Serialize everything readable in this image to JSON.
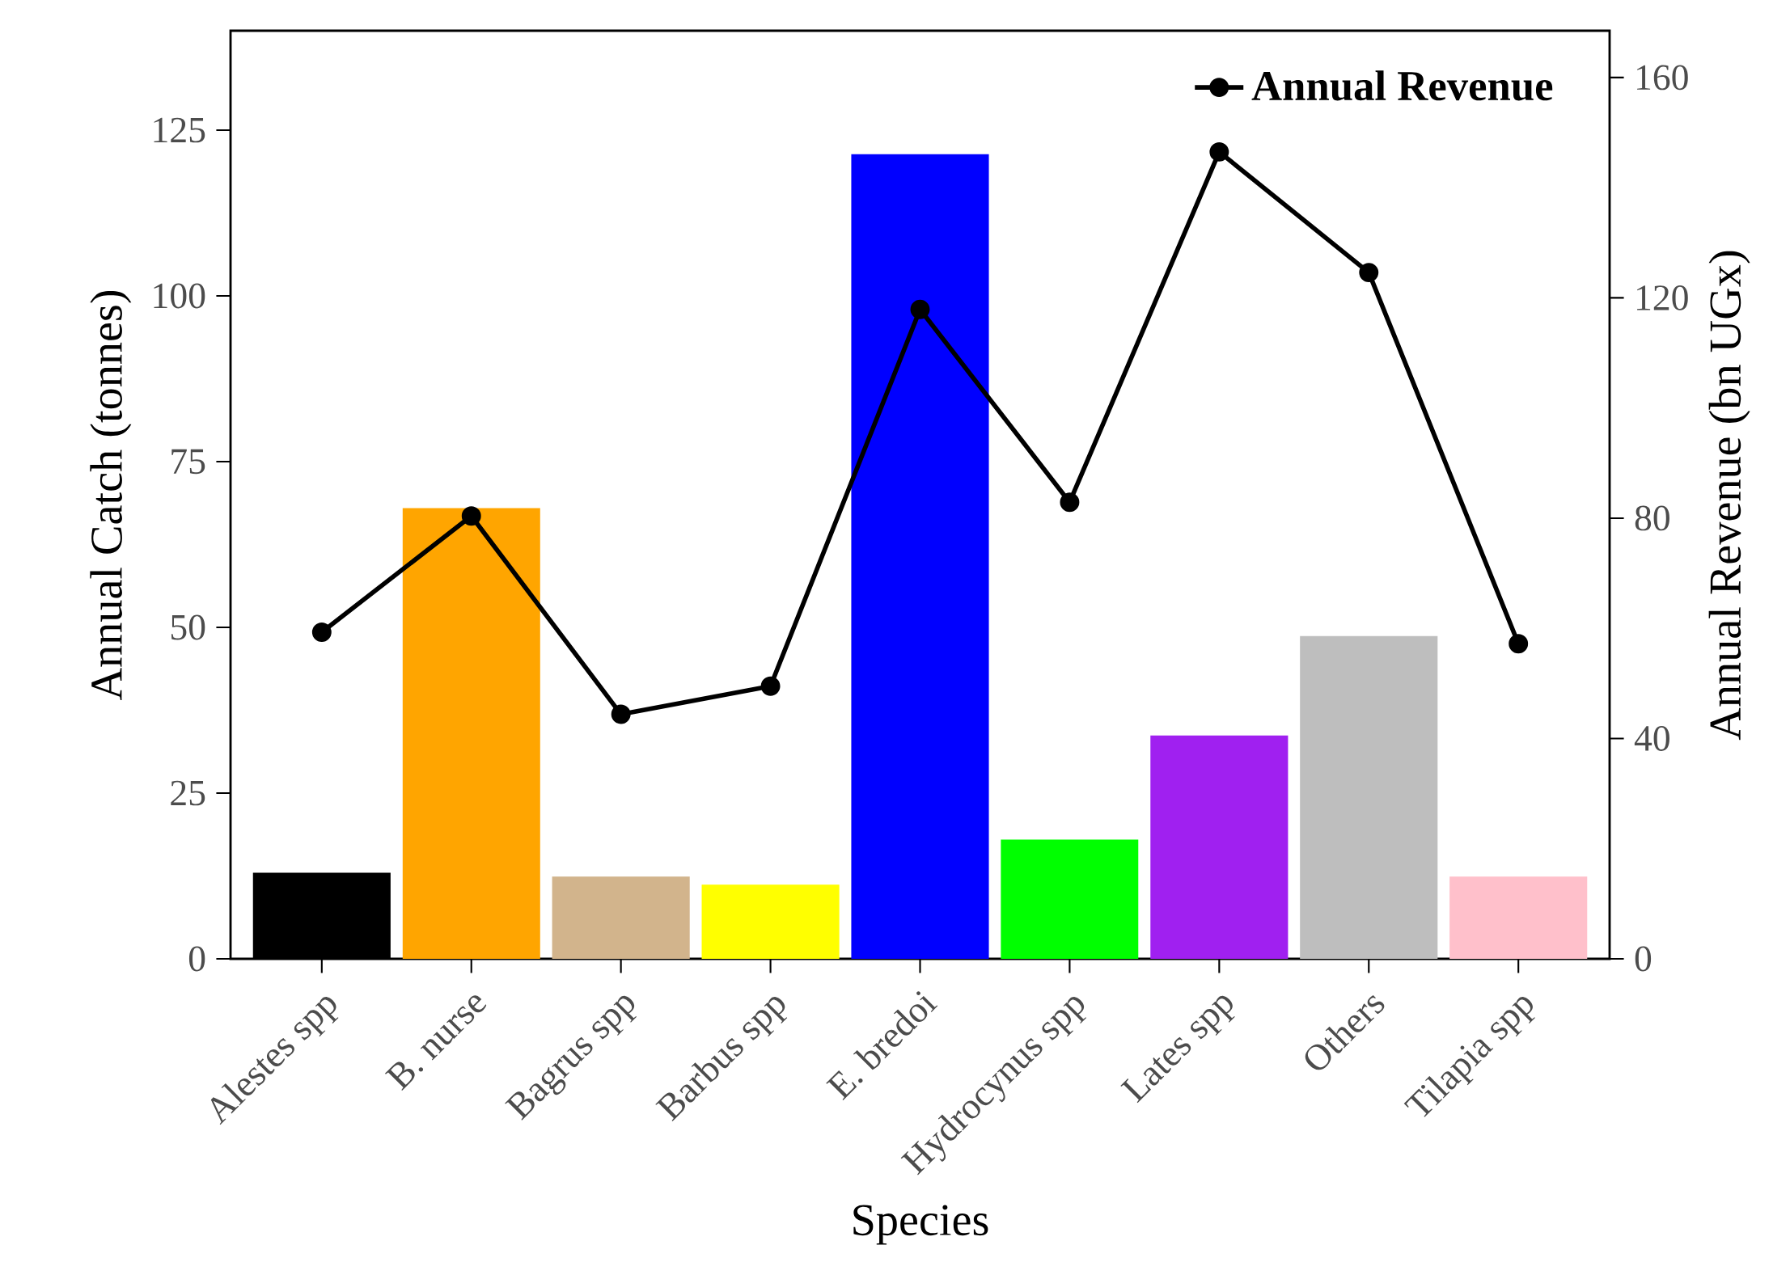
{
  "chart_data": {
    "type": "bar",
    "xlabel": "Species",
    "ylabel": "Annual Catch (tonnes)",
    "y2label": "Annual Revenue (bn UGx)",
    "categories": [
      "Alestes spp",
      "B. nurse",
      "Bagrus spp",
      "Barbus spp",
      "E. bredoi",
      "Hydrocynus spp",
      "Lates spp",
      "Others",
      "Tilapia spp"
    ],
    "series": [
      {
        "values": [
          13,
          68,
          12.4,
          11.2,
          121.4,
          18,
          33.7,
          48.7,
          12.4
        ],
        "colors": [
          "#000000",
          "#ffa500",
          "#d2b48c",
          "#ffff00",
          "#0000ff",
          "#00ff00",
          "#a020f0",
          "#bebebe",
          "#ffc0cb"
        ]
      },
      {
        "type": "line",
        "name": "Annual Revenue",
        "axis": "y2",
        "color": "#000000",
        "marker": "circle",
        "values": [
          59.3,
          80.4,
          44.4,
          49.5,
          117.9,
          82.9,
          146.5,
          124.6,
          57.2
        ]
      }
    ],
    "ylim": [
      0,
      140
    ],
    "yticks": [
      0,
      25,
      50,
      75,
      100,
      125
    ],
    "y2lim": [
      0,
      168.5
    ],
    "y2ticks": [
      0,
      40,
      80,
      120,
      160
    ],
    "legend": "top right",
    "grid": false
  }
}
